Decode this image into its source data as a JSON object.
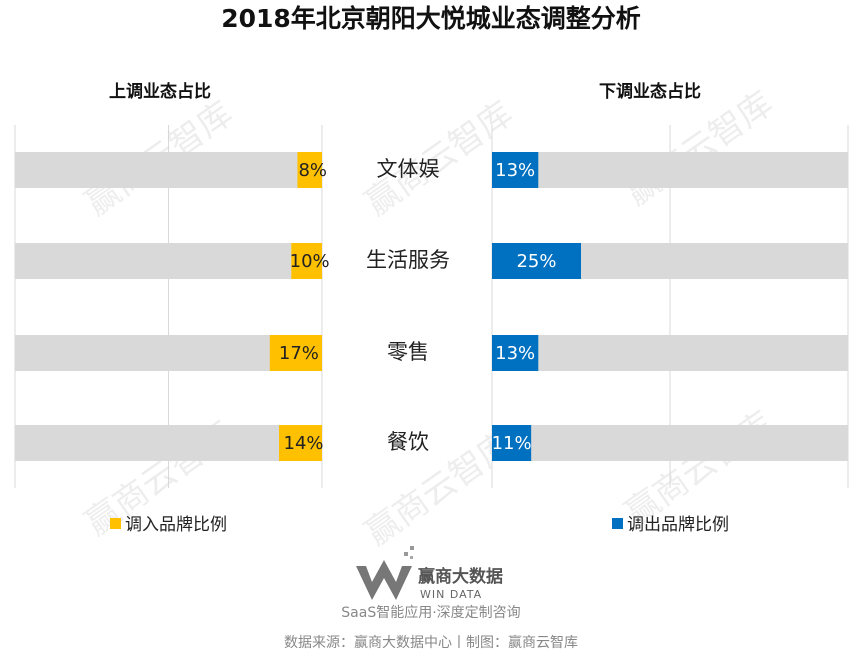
{
  "chart_data": {
    "type": "butterfly",
    "title": "2018年北京朝阳大悦城业态调整分析",
    "categories": [
      "文体娱",
      "生活服务",
      "零售",
      "餐饮"
    ],
    "xlim": [
      0,
      100
    ],
    "series": [
      {
        "name": "调入品牌比例",
        "panel_title": "上调业态占比",
        "color": "#ffc000",
        "values": [
          8,
          10,
          17,
          14
        ],
        "value_labels": [
          "8%",
          "10%",
          "17%",
          "14%"
        ]
      },
      {
        "name": "调出品牌比例",
        "panel_title": "下调业态占比",
        "color": "#0070c0",
        "values": [
          13,
          25,
          13,
          11
        ],
        "value_labels": [
          "13%",
          "25%",
          "13%",
          "11%"
        ]
      }
    ],
    "track_color": "#d9d9d9"
  },
  "watermark": "赢商云智库",
  "footer": {
    "logo_name": "赢商大数据",
    "logo_en": "WIN DATA",
    "slogan": "SaaS智能应用·深度定制咨询",
    "source": "数据来源：赢商大数据中心丨制图：赢商云智库"
  }
}
